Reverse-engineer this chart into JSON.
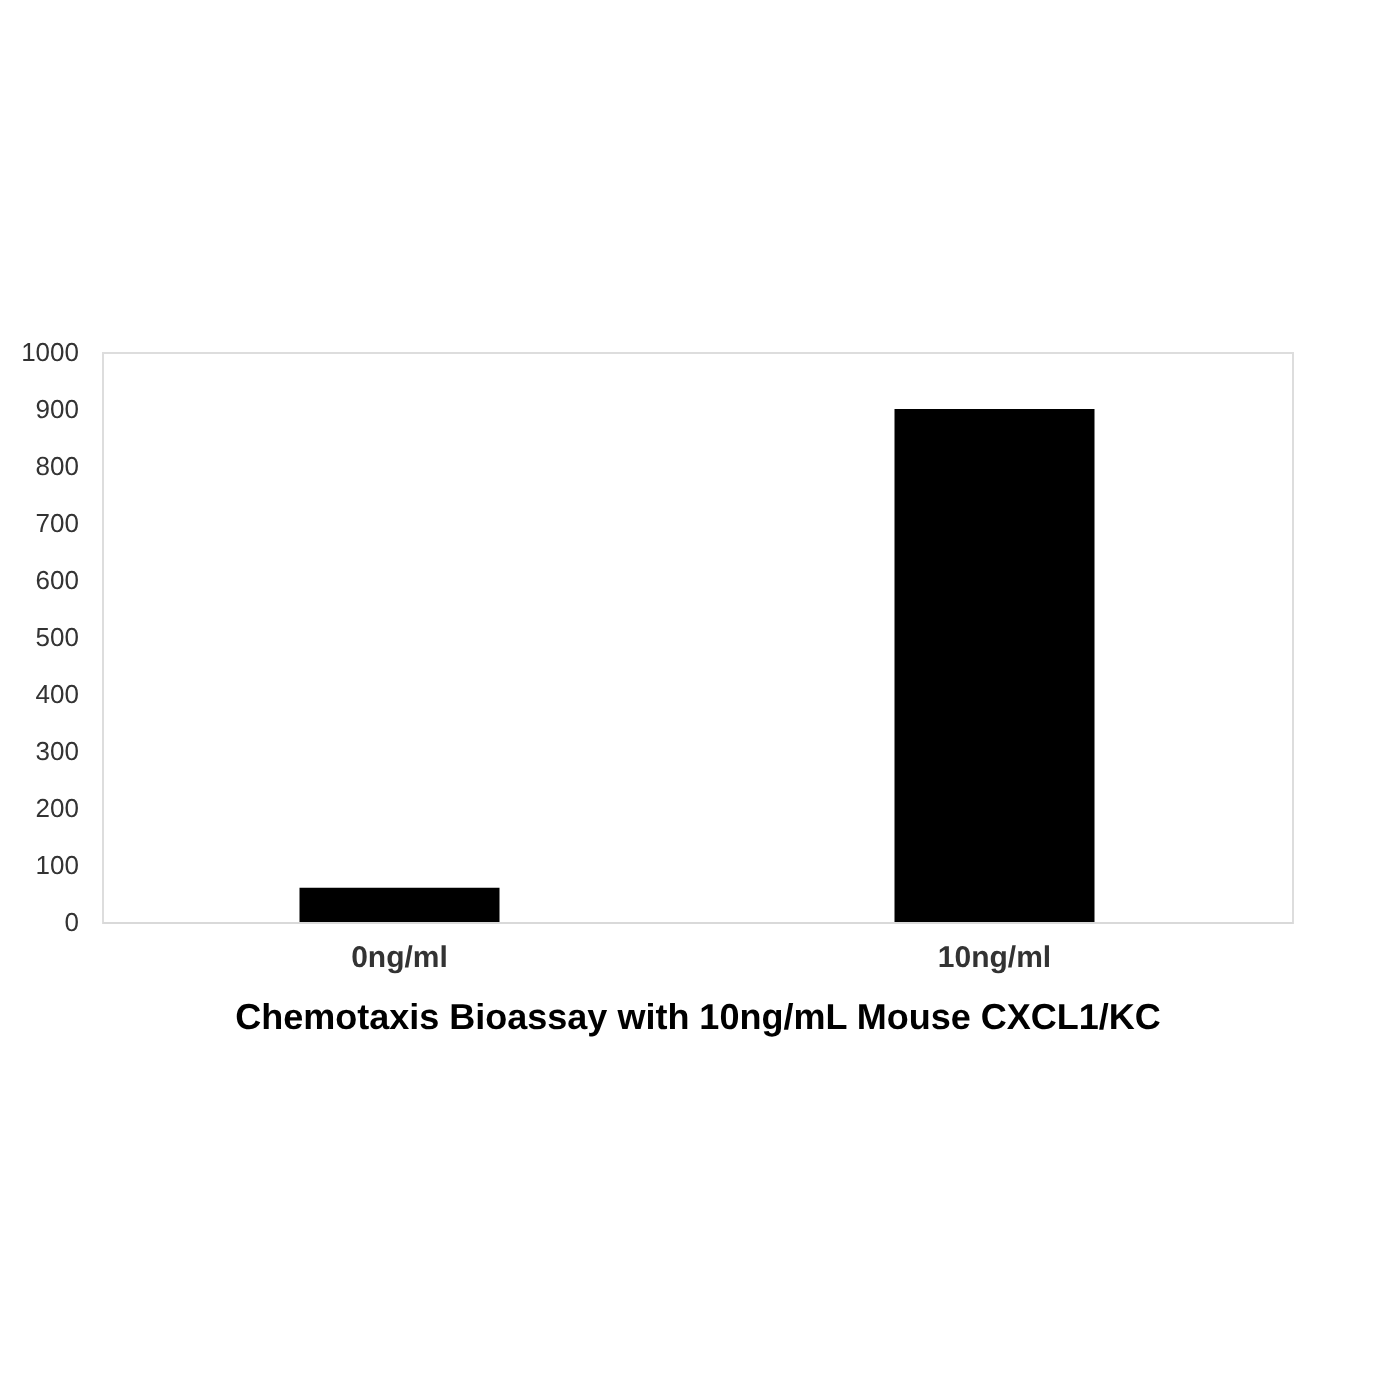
{
  "chart_data": {
    "type": "bar",
    "xlabel": "Chemotaxis Bioassay with 10ng/mL Mouse CXCL1/KC",
    "categories": [
      "0ng/ml",
      "10ng/ml"
    ],
    "values": [
      60,
      900
    ],
    "color": "#000000",
    "ylim": [
      0,
      1000
    ],
    "yticks": [
      0,
      100,
      200,
      300,
      400,
      500,
      600,
      700,
      800,
      900,
      1000
    ],
    "grid": false
  }
}
